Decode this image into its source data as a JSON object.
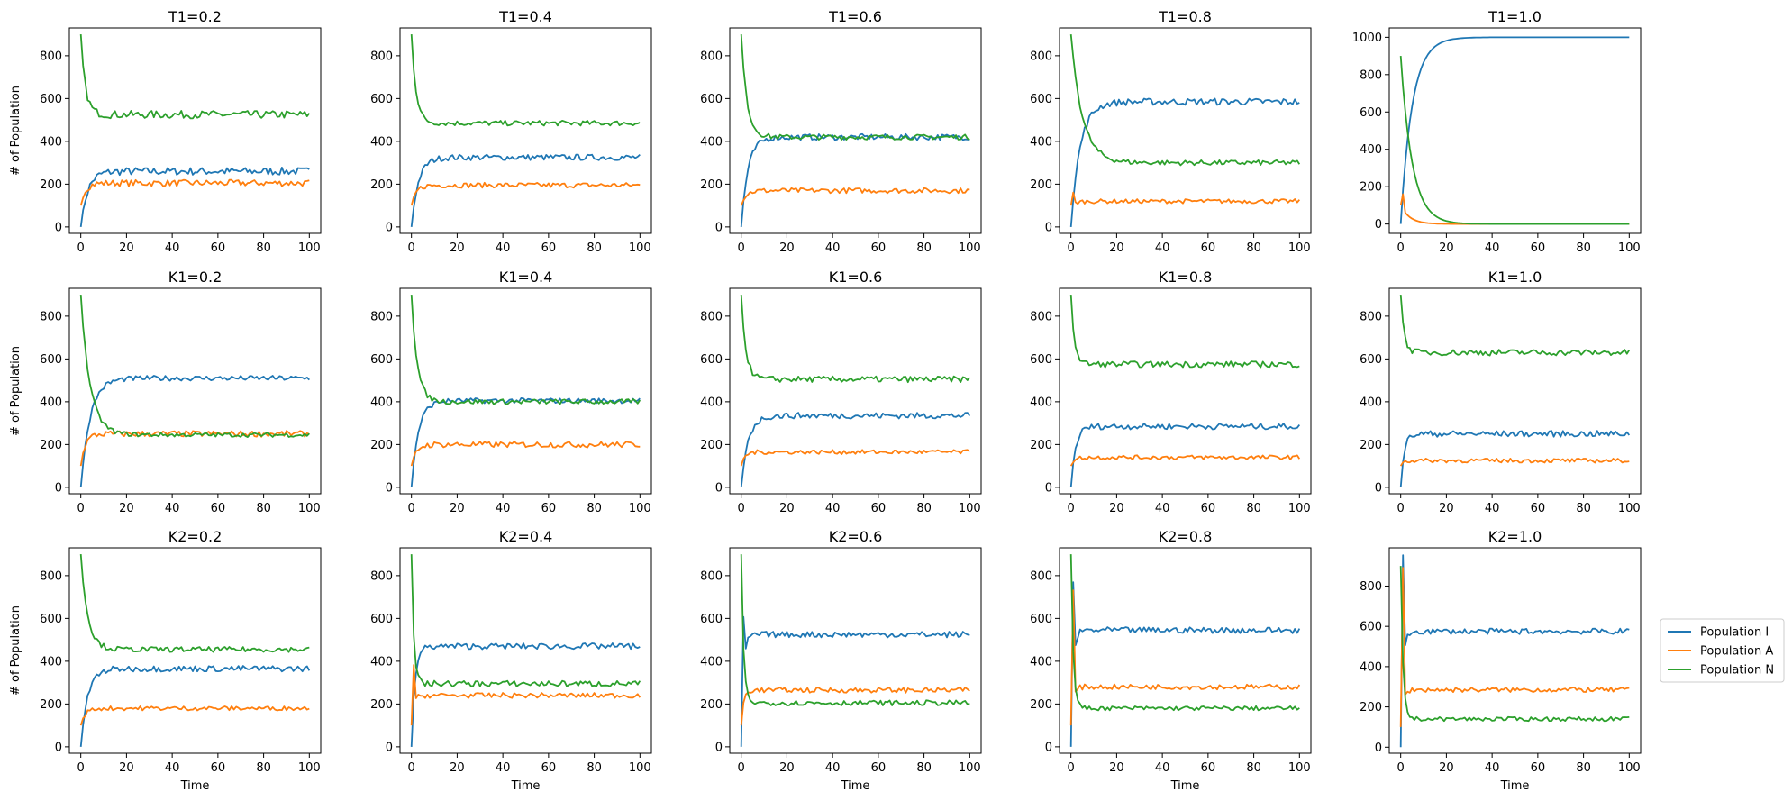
{
  "colors": {
    "I": "#1f77b4",
    "A": "#ff7f0e",
    "N": "#2ca02c"
  },
  "chart_data": {
    "type": "line",
    "xlabel": "Time",
    "ylabel": "# of Population",
    "legend_position": "right",
    "legend": [
      "Population I",
      "Population A",
      "Population N"
    ],
    "x_range": [
      0,
      100
    ],
    "x_ticks": [
      0,
      20,
      40,
      60,
      80,
      100
    ],
    "panels": [
      {
        "title": "T1=0.2",
        "ylim": [
          -30,
          930
        ],
        "yticks": [
          0,
          200,
          400,
          600,
          800
        ],
        "series": [
          {
            "name": "Population I",
            "start": 0,
            "steady": 260,
            "tau": 3,
            "noise": 18
          },
          {
            "name": "Population A",
            "start": 100,
            "steady": 205,
            "tau": 2,
            "noise": 15
          },
          {
            "name": "Population N",
            "start": 900,
            "steady": 525,
            "tau": 2,
            "noise": 18
          }
        ]
      },
      {
        "title": "T1=0.4",
        "ylim": [
          -30,
          930
        ],
        "yticks": [
          0,
          200,
          400,
          600,
          800
        ],
        "series": [
          {
            "name": "Population I",
            "start": 0,
            "steady": 325,
            "tau": 3,
            "noise": 14
          },
          {
            "name": "Population A",
            "start": 100,
            "steady": 195,
            "tau": 2,
            "noise": 12
          },
          {
            "name": "Population N",
            "start": 900,
            "steady": 485,
            "tau": 2,
            "noise": 12
          }
        ]
      },
      {
        "title": "T1=0.6",
        "ylim": [
          -30,
          930
        ],
        "yticks": [
          0,
          200,
          400,
          600,
          800
        ],
        "series": [
          {
            "name": "Population I",
            "start": 0,
            "steady": 420,
            "tau": 3,
            "noise": 14
          },
          {
            "name": "Population A",
            "start": 100,
            "steady": 170,
            "tau": 2,
            "noise": 12
          },
          {
            "name": "Population N",
            "start": 900,
            "steady": 420,
            "tau": 2.5,
            "noise": 12
          }
        ]
      },
      {
        "title": "T1=0.8",
        "ylim": [
          -30,
          930
        ],
        "yticks": [
          0,
          200,
          400,
          600,
          800
        ],
        "series": [
          {
            "name": "Population I",
            "start": 0,
            "steady": 585,
            "tau": 4,
            "noise": 16
          },
          {
            "name": "Population A",
            "start": 100,
            "steady": 120,
            "tau": 2,
            "noise": 10,
            "bump": 160
          },
          {
            "name": "Population N",
            "start": 900,
            "steady": 300,
            "tau": 5,
            "noise": 12
          }
        ]
      },
      {
        "title": "T1=1.0",
        "ylim": [
          -50,
          1050
        ],
        "yticks": [
          0,
          200,
          400,
          600,
          800,
          1000
        ],
        "series": [
          {
            "name": "Population I",
            "start": 0,
            "steady": 1000,
            "tau": 5,
            "noise": 0
          },
          {
            "name": "Population A",
            "start": 100,
            "steady": 0,
            "tau": 4,
            "noise": 0,
            "bump": 160
          },
          {
            "name": "Population N",
            "start": 900,
            "steady": 0,
            "tau": 5,
            "noise": 0
          }
        ]
      },
      {
        "title": "K1=0.2",
        "ylim": [
          -30,
          930
        ],
        "yticks": [
          0,
          200,
          400,
          600,
          800
        ],
        "series": [
          {
            "name": "Population I",
            "start": 0,
            "steady": 510,
            "tau": 4,
            "noise": 12
          },
          {
            "name": "Population A",
            "start": 100,
            "steady": 250,
            "tau": 2,
            "noise": 14
          },
          {
            "name": "Population N",
            "start": 900,
            "steady": 245,
            "tau": 4,
            "noise": 10
          }
        ]
      },
      {
        "title": "K1=0.4",
        "ylim": [
          -30,
          930
        ],
        "yticks": [
          0,
          200,
          400,
          600,
          800
        ],
        "series": [
          {
            "name": "Population I",
            "start": 0,
            "steady": 405,
            "tau": 3,
            "noise": 12
          },
          {
            "name": "Population A",
            "start": 100,
            "steady": 200,
            "tau": 2,
            "noise": 14
          },
          {
            "name": "Population N",
            "start": 900,
            "steady": 400,
            "tau": 2.5,
            "noise": 12
          }
        ]
      },
      {
        "title": "K1=0.6",
        "ylim": [
          -30,
          930
        ],
        "yticks": [
          0,
          200,
          400,
          600,
          800
        ],
        "series": [
          {
            "name": "Population I",
            "start": 0,
            "steady": 335,
            "tau": 3,
            "noise": 14
          },
          {
            "name": "Population A",
            "start": 100,
            "steady": 165,
            "tau": 1.5,
            "noise": 10
          },
          {
            "name": "Population N",
            "start": 900,
            "steady": 505,
            "tau": 2,
            "noise": 14
          }
        ]
      },
      {
        "title": "K1=0.8",
        "ylim": [
          -30,
          930
        ],
        "yticks": [
          0,
          200,
          400,
          600,
          800
        ],
        "series": [
          {
            "name": "Population I",
            "start": 0,
            "steady": 285,
            "tau": 2,
            "noise": 14
          },
          {
            "name": "Population A",
            "start": 100,
            "steady": 140,
            "tau": 1.5,
            "noise": 10
          },
          {
            "name": "Population N",
            "start": 900,
            "steady": 575,
            "tau": 1.5,
            "noise": 14
          }
        ]
      },
      {
        "title": "K1=1.0",
        "ylim": [
          -30,
          930
        ],
        "yticks": [
          0,
          200,
          400,
          600,
          800
        ],
        "series": [
          {
            "name": "Population I",
            "start": 0,
            "steady": 250,
            "tau": 1.5,
            "noise": 14
          },
          {
            "name": "Population A",
            "start": 100,
            "steady": 125,
            "tau": 1,
            "noise": 10
          },
          {
            "name": "Population N",
            "start": 900,
            "steady": 630,
            "tau": 1.5,
            "noise": 14
          }
        ]
      },
      {
        "title": "K2=0.2",
        "ylim": [
          -30,
          930
        ],
        "yticks": [
          0,
          200,
          400,
          600,
          800
        ],
        "series": [
          {
            "name": "Population I",
            "start": 0,
            "steady": 365,
            "tau": 3,
            "noise": 14
          },
          {
            "name": "Population A",
            "start": 100,
            "steady": 180,
            "tau": 2,
            "noise": 10
          },
          {
            "name": "Population N",
            "start": 900,
            "steady": 455,
            "tau": 3,
            "noise": 12
          }
        ]
      },
      {
        "title": "K2=0.4",
        "ylim": [
          -30,
          930
        ],
        "yticks": [
          0,
          200,
          400,
          600,
          800
        ],
        "series": [
          {
            "name": "Population I",
            "start": 0,
            "steady": 470,
            "tau": 1.5,
            "noise": 14
          },
          {
            "name": "Population A",
            "start": 100,
            "steady": 240,
            "tau": 1,
            "noise": 12,
            "bump": 380
          },
          {
            "name": "Population N",
            "start": 900,
            "steady": 295,
            "tau": 1,
            "noise": 14
          }
        ]
      },
      {
        "title": "K2=0.6",
        "ylim": [
          -30,
          930
        ],
        "yticks": [
          0,
          200,
          400,
          600,
          800
        ],
        "series": [
          {
            "name": "Population I",
            "start": 0,
            "steady": 525,
            "tau": 1,
            "noise": 14,
            "bump": 610
          },
          {
            "name": "Population A",
            "start": 100,
            "steady": 265,
            "tau": 1,
            "noise": 12
          },
          {
            "name": "Population N",
            "start": 900,
            "steady": 205,
            "tau": 1,
            "noise": 12
          }
        ]
      },
      {
        "title": "K2=0.8",
        "ylim": [
          -30,
          930
        ],
        "yticks": [
          0,
          200,
          400,
          600,
          800
        ],
        "series": [
          {
            "name": "Population I",
            "start": 0,
            "steady": 545,
            "tau": 1,
            "noise": 14,
            "bump": 770
          },
          {
            "name": "Population A",
            "start": 100,
            "steady": 280,
            "tau": 1,
            "noise": 12,
            "bump": 730
          },
          {
            "name": "Population N",
            "start": 900,
            "steady": 180,
            "tau": 1,
            "noise": 10
          }
        ]
      },
      {
        "title": "K2=1.0",
        "ylim": [
          -30,
          990
        ],
        "yticks": [
          0,
          200,
          400,
          600,
          800
        ],
        "series": [
          {
            "name": "Population I",
            "start": 0,
            "steady": 575,
            "tau": 1,
            "noise": 14,
            "bump": 950
          },
          {
            "name": "Population A",
            "start": 100,
            "steady": 285,
            "tau": 1,
            "noise": 12,
            "bump": 890
          },
          {
            "name": "Population N",
            "start": 900,
            "steady": 140,
            "tau": 1,
            "noise": 10
          }
        ]
      }
    ]
  }
}
